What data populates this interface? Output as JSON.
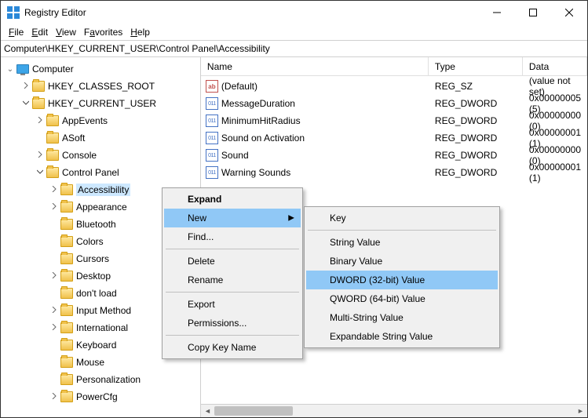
{
  "window": {
    "title": "Registry Editor"
  },
  "menu": {
    "file": "File",
    "edit": "Edit",
    "view": "View",
    "favorites": "Favorites",
    "help": "Help"
  },
  "address": "Computer\\HKEY_CURRENT_USER\\Control Panel\\Accessibility",
  "tree": {
    "root": "Computer",
    "items": [
      {
        "label": "HKEY_CLASSES_ROOT",
        "indent": 1,
        "exp": "›"
      },
      {
        "label": "HKEY_CURRENT_USER",
        "indent": 1,
        "exp": "⌄"
      },
      {
        "label": "AppEvents",
        "indent": 2,
        "exp": "›"
      },
      {
        "label": "ASoft",
        "indent": 2,
        "exp": ""
      },
      {
        "label": "Console",
        "indent": 2,
        "exp": "›"
      },
      {
        "label": "Control Panel",
        "indent": 2,
        "exp": "⌄"
      },
      {
        "label": "Accessibility",
        "indent": 3,
        "exp": "›",
        "selected": true
      },
      {
        "label": "Appearance",
        "indent": 3,
        "exp": "›"
      },
      {
        "label": "Bluetooth",
        "indent": 3,
        "exp": ""
      },
      {
        "label": "Colors",
        "indent": 3,
        "exp": ""
      },
      {
        "label": "Cursors",
        "indent": 3,
        "exp": ""
      },
      {
        "label": "Desktop",
        "indent": 3,
        "exp": "›"
      },
      {
        "label": "don't load",
        "indent": 3,
        "exp": ""
      },
      {
        "label": "Input Method",
        "indent": 3,
        "exp": "›"
      },
      {
        "label": "International",
        "indent": 3,
        "exp": "›"
      },
      {
        "label": "Keyboard",
        "indent": 3,
        "exp": ""
      },
      {
        "label": "Mouse",
        "indent": 3,
        "exp": ""
      },
      {
        "label": "Personalization",
        "indent": 3,
        "exp": ""
      },
      {
        "label": "PowerCfg",
        "indent": 3,
        "exp": "›"
      }
    ]
  },
  "list": {
    "cols": {
      "name": "Name",
      "type": "Type",
      "data": "Data"
    },
    "rows": [
      {
        "icon": "ab",
        "name": "(Default)",
        "type": "REG_SZ",
        "data": "(value not set)"
      },
      {
        "icon": "bin",
        "name": "MessageDuration",
        "type": "REG_DWORD",
        "data": "0x00000005 (5)"
      },
      {
        "icon": "bin",
        "name": "MinimumHitRadius",
        "type": "REG_DWORD",
        "data": "0x00000000 (0)"
      },
      {
        "icon": "bin",
        "name": "Sound on Activation",
        "type": "REG_DWORD",
        "data": "0x00000001 (1)"
      },
      {
        "icon": "bin",
        "name": "Sound",
        "type": "REG_DWORD",
        "data": "0x00000000 (0)"
      },
      {
        "icon": "bin",
        "name": "Warning Sounds",
        "type": "REG_DWORD",
        "data": "0x00000001 (1)"
      }
    ]
  },
  "ctx1": {
    "expand": "Expand",
    "new": "New",
    "find": "Find...",
    "delete": "Delete",
    "rename": "Rename",
    "export": "Export",
    "permissions": "Permissions...",
    "copy": "Copy Key Name"
  },
  "ctx2": {
    "key": "Key",
    "string": "String Value",
    "binary": "Binary Value",
    "dword": "DWORD (32-bit) Value",
    "qword": "QWORD (64-bit) Value",
    "multi": "Multi-String Value",
    "expand": "Expandable String Value"
  }
}
